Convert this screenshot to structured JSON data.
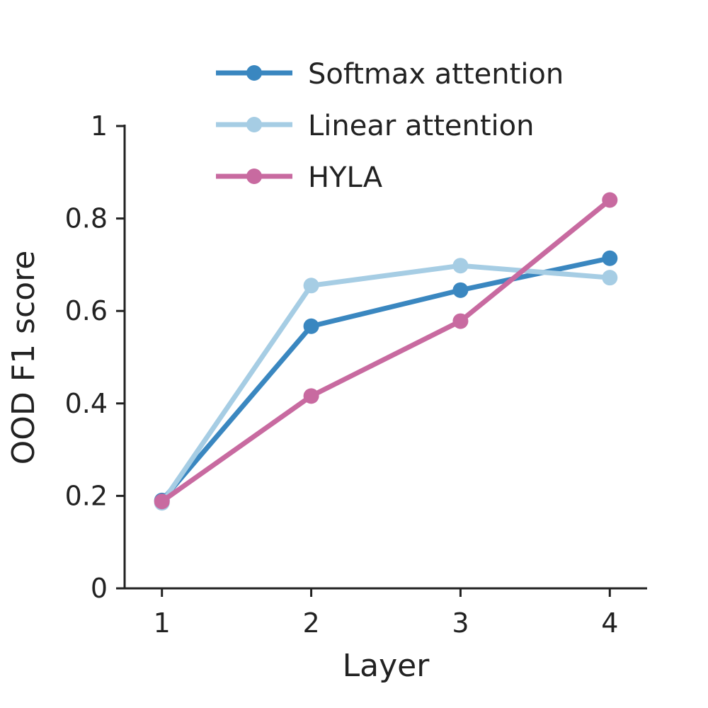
{
  "chart_data": {
    "type": "line",
    "xlabel": "Layer",
    "ylabel": "OOD F1 score",
    "x": [
      1,
      2,
      3,
      4
    ],
    "x_tick_labels": [
      "1",
      "2",
      "3",
      "4"
    ],
    "xlim": [
      0.75,
      4.25
    ],
    "ylim": [
      0,
      1
    ],
    "y_ticks": [
      0,
      0.2,
      0.4,
      0.6,
      0.8,
      1
    ],
    "y_tick_labels": [
      "0",
      "0.2",
      "0.4",
      "0.6",
      "0.8",
      "1"
    ],
    "grid": false,
    "legend_position": "top",
    "series": [
      {
        "name": "Softmax attention",
        "color": "#3a87c0",
        "values": [
          0.19,
          0.567,
          0.645,
          0.714
        ]
      },
      {
        "name": "Linear attention",
        "color": "#a6cde4",
        "values": [
          0.185,
          0.655,
          0.698,
          0.672
        ]
      },
      {
        "name": "HYLA",
        "color": "#c86aa0",
        "values": [
          0.188,
          0.416,
          0.578,
          0.84
        ]
      }
    ]
  }
}
